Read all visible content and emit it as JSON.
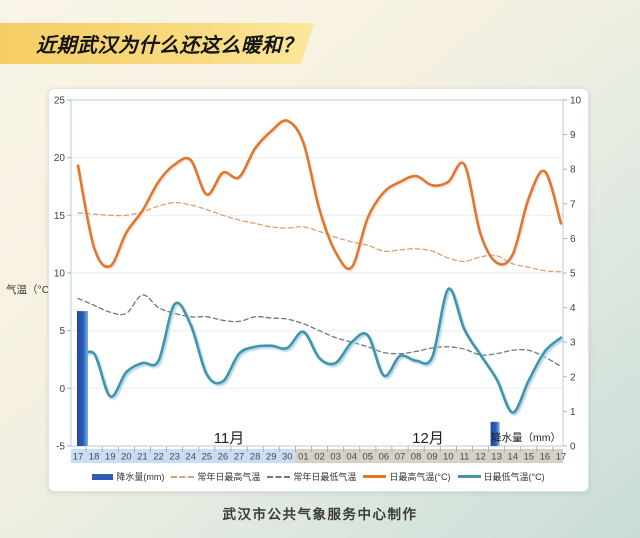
{
  "title": "近期武汉为什么还这么暖和？",
  "footer": "武汉市公共气象服务中心制作",
  "colors": {
    "banner_yellow_left": "#f5cd63",
    "banner_yellow_right": "#fbe79c",
    "card_background": "#ffffff",
    "plot_border": "#b6cdda",
    "gridline": "#e7edf0"
  },
  "chart_data": {
    "type": "line+bar",
    "x": {
      "days": [
        "17",
        "18",
        "19",
        "20",
        "21",
        "22",
        "23",
        "24",
        "25",
        "26",
        "27",
        "28",
        "29",
        "30",
        "01",
        "02",
        "03",
        "04",
        "05",
        "06",
        "07",
        "08",
        "09",
        "10",
        "11",
        "12",
        "13",
        "14",
        "15",
        "16",
        "17"
      ],
      "month_split_index": 14,
      "months": [
        "11月",
        "12月"
      ],
      "nov_band_color": "#c8def4",
      "dec_band_color": "#d5d1c6"
    },
    "y_left": {
      "label": "气温（°C）",
      "ticks": [
        25,
        20,
        15,
        10,
        5,
        0,
        -5
      ],
      "range": [
        -5,
        25
      ]
    },
    "y_right": {
      "label": "降水量（mm）",
      "ticks": [
        10,
        9,
        8,
        7,
        6,
        5,
        4,
        3,
        2,
        1,
        0
      ],
      "range": [
        0,
        10
      ]
    },
    "series": [
      {
        "key": "normal_max",
        "name": "常年日最高气温",
        "style": "dashed",
        "color": "#e09d74",
        "values": [
          15.2,
          15.1,
          15.0,
          15.0,
          15.3,
          15.8,
          16.1,
          15.9,
          15.5,
          15.0,
          14.6,
          14.3,
          14.0,
          13.9,
          14.0,
          13.6,
          13.1,
          12.7,
          12.4,
          11.9,
          12.0,
          12.1,
          11.9,
          11.3,
          11.0,
          11.4,
          11.5,
          10.8,
          10.5,
          10.2,
          10.1
        ]
      },
      {
        "key": "normal_min",
        "name": "常年日最低气温",
        "style": "dashed",
        "color": "#6b7c79",
        "values": [
          7.8,
          7.2,
          6.6,
          6.5,
          8.1,
          7.0,
          6.5,
          6.2,
          6.2,
          5.9,
          5.8,
          6.2,
          6.1,
          6.0,
          5.6,
          5.0,
          4.4,
          4.0,
          3.6,
          3.1,
          3.0,
          3.2,
          3.5,
          3.6,
          3.4,
          2.9,
          3.0,
          3.3,
          3.3,
          2.7,
          1.9
        ]
      },
      {
        "key": "daily_max",
        "name": "日最高气温(°C)",
        "style": "solid",
        "color": "#e2762b",
        "values": [
          19.3,
          12.2,
          10.6,
          13.5,
          15.4,
          17.9,
          19.4,
          19.8,
          16.8,
          18.7,
          18.3,
          20.8,
          22.3,
          23.2,
          21.3,
          15.5,
          11.8,
          10.5,
          14.8,
          17.0,
          17.9,
          18.4,
          17.6,
          17.9,
          19.4,
          13.4,
          10.9,
          11.6,
          16.5,
          18.8,
          14.3
        ]
      },
      {
        "key": "daily_min",
        "name": "日最低气温(°C)",
        "style": "solid",
        "color": "#3f95a9",
        "values": [
          2.6,
          3.0,
          -0.7,
          1.4,
          2.2,
          2.4,
          7.3,
          5.5,
          1.2,
          0.6,
          3.0,
          3.6,
          3.7,
          3.5,
          4.9,
          2.6,
          2.2,
          4.0,
          4.6,
          1.1,
          2.8,
          2.4,
          2.7,
          8.6,
          5.1,
          2.9,
          0.8,
          -2.1,
          0.7,
          3.2,
          4.4
        ]
      }
    ],
    "bars": {
      "name": "降水量(mm)",
      "color": "#2a5cb8",
      "points": [
        {
          "date": "11-17",
          "day_index": 0,
          "value": 3.9
        },
        {
          "date": "12-13",
          "day_index": 26,
          "value": 0.7
        }
      ]
    },
    "precip_axis_note": "降水量（mm）"
  },
  "legend": [
    {
      "type": "bar",
      "color": "#2a5cb8",
      "label": "降水量(mm)"
    },
    {
      "type": "dash",
      "color": "#e09d74",
      "label": "常年日最高气温"
    },
    {
      "type": "dash",
      "color": "#6b7c79",
      "label": "常年日最低气温"
    },
    {
      "type": "line",
      "color": "#e2762b",
      "label": "日最高气温(°C)"
    },
    {
      "type": "line",
      "color": "#3f95a9",
      "label": "日最低气温(°C)"
    }
  ]
}
